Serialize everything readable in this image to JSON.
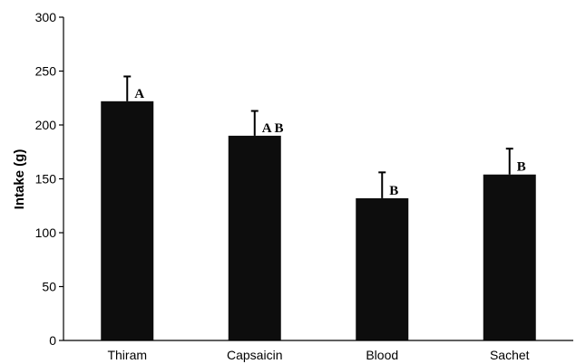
{
  "chart_data": {
    "type": "bar",
    "title": "",
    "xlabel": "",
    "ylabel": "Intake (g)",
    "ylim": [
      0,
      300
    ],
    "yticks": [
      0,
      50,
      100,
      150,
      200,
      250,
      300
    ],
    "categories": [
      "Thiram",
      "Capsaicin",
      "Blood",
      "Sachet"
    ],
    "values": [
      222,
      190,
      132,
      154
    ],
    "error_upper": [
      245,
      213,
      156,
      178
    ],
    "significance_labels": [
      "A",
      "A B",
      "B",
      "B"
    ],
    "bar_color": "#0d0d0d",
    "grid": false,
    "legend": "none"
  }
}
